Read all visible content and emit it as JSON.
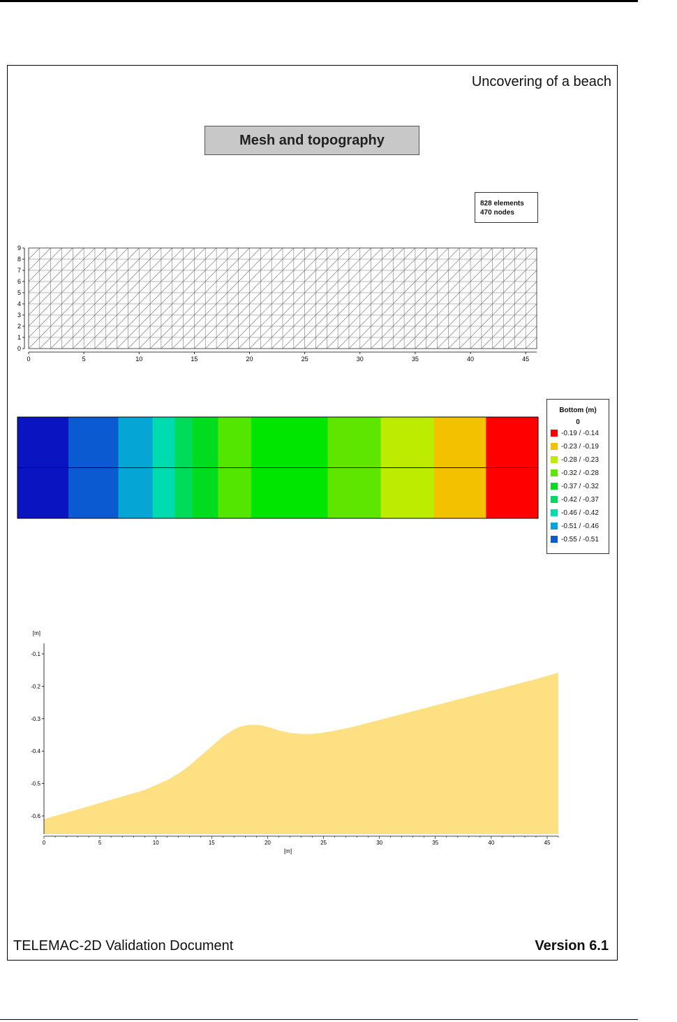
{
  "header": {
    "title": "Uncovering of a beach"
  },
  "caption": "Mesh and topography",
  "mesh_stats": {
    "elements": "828 elements",
    "nodes": "470 nodes"
  },
  "mesh_plot": {
    "x_ticks": [
      "0",
      "5",
      "10",
      "15",
      "20",
      "25",
      "30",
      "35",
      "40",
      "45"
    ],
    "y_ticks": [
      "0",
      "1",
      "2",
      "3",
      "4",
      "5",
      "6",
      "7",
      "8",
      "9"
    ],
    "nx": 46,
    "ny": 9
  },
  "topo_map": {
    "bands": [
      {
        "x0": 0,
        "x1": 4.6,
        "color": "#0a14c0"
      },
      {
        "x0": 4.6,
        "x1": 9.1,
        "color": "#0a5ad2"
      },
      {
        "x0": 9.1,
        "x1": 12.2,
        "color": "#05a6d6"
      },
      {
        "x0": 12.2,
        "x1": 14.2,
        "color": "#00dcb0"
      },
      {
        "x0": 14.2,
        "x1": 15.8,
        "color": "#00dc5a"
      },
      {
        "x0": 15.8,
        "x1": 18.1,
        "color": "#00dc1e"
      },
      {
        "x0": 18.1,
        "x1": 21.1,
        "color": "#52e600"
      },
      {
        "x0": 21.1,
        "x1": 28.0,
        "color": "#00e600"
      },
      {
        "x0": 28.0,
        "x1": 32.8,
        "color": "#5ee600"
      },
      {
        "x0": 32.8,
        "x1": 37.6,
        "color": "#bcec00"
      },
      {
        "x0": 37.6,
        "x1": 42.3,
        "color": "#f2c200"
      },
      {
        "x0": 42.3,
        "x1": 47,
        "color": "#ff0000"
      }
    ]
  },
  "legend": {
    "title": "Bottom (m)",
    "subtitle": "0",
    "items": [
      {
        "label": "-0.19  /  -0.14",
        "color": "#ff0000"
      },
      {
        "label": "-0.23  /  -0.19",
        "color": "#f2c200"
      },
      {
        "label": "-0.28  /  -0.23",
        "color": "#bcec00"
      },
      {
        "label": "-0.32  /  -0.28",
        "color": "#5ee600"
      },
      {
        "label": "-0.37  /  -0.32",
        "color": "#00dc1e"
      },
      {
        "label": "-0.42  /  -0.37",
        "color": "#00dc5a"
      },
      {
        "label": "-0.46  /  -0.42",
        "color": "#00dcb0"
      },
      {
        "label": "-0.51  /  -0.46",
        "color": "#05a6d6"
      },
      {
        "label": "-0.55  /  -0.51",
        "color": "#0a5ad2"
      }
    ]
  },
  "chart_data": {
    "type": "area",
    "xlabel": "[m]",
    "ylabel": "[m]",
    "xlim": [
      0,
      46
    ],
    "ylim": [
      -0.656,
      -0.085
    ],
    "x_ticks": [
      0,
      5,
      10,
      15,
      20,
      25,
      30,
      35,
      40,
      45
    ],
    "y_ticks": [
      -0.1,
      -0.2,
      -0.3,
      -0.4,
      -0.5,
      -0.6
    ],
    "y_tick_labels": [
      "-0.1",
      "-0.2",
      "-0.3",
      "-0.4",
      "-0.5",
      "-0.6"
    ],
    "fill_color": "#fce082",
    "series": [
      {
        "x": [
          0,
          1,
          2,
          3,
          4,
          5,
          6,
          7,
          8,
          9,
          10,
          11,
          12,
          13,
          14,
          15,
          16,
          17,
          17.5,
          18,
          18.5,
          19,
          19.5,
          20,
          21,
          22,
          23,
          24,
          25,
          26,
          27,
          28,
          29,
          30,
          31,
          32,
          33,
          34,
          35,
          36,
          37,
          38,
          39,
          40,
          41,
          42,
          43,
          44,
          45,
          46
        ],
        "values": [
          -0.61,
          -0.6,
          -0.59,
          -0.58,
          -0.57,
          -0.56,
          -0.55,
          -0.54,
          -0.53,
          -0.52,
          -0.505,
          -0.49,
          -0.47,
          -0.445,
          -0.415,
          -0.385,
          -0.355,
          -0.333,
          -0.325,
          -0.321,
          -0.319,
          -0.319,
          -0.321,
          -0.325,
          -0.336,
          -0.344,
          -0.347,
          -0.347,
          -0.343,
          -0.337,
          -0.33,
          -0.322,
          -0.313,
          -0.304,
          -0.295,
          -0.286,
          -0.277,
          -0.268,
          -0.259,
          -0.25,
          -0.241,
          -0.232,
          -0.223,
          -0.214,
          -0.205,
          -0.196,
          -0.187,
          -0.178,
          -0.168,
          -0.158
        ]
      }
    ]
  },
  "footer": {
    "left": "TELEMAC-2D Validation Document",
    "right": "Version 6.1"
  }
}
